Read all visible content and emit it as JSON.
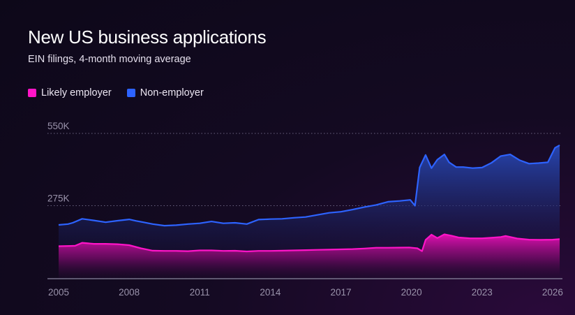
{
  "header": {
    "title": "New US business applications",
    "subtitle": "EIN filings, 4-month moving average"
  },
  "chart_data": {
    "type": "area",
    "title": "New US business applications",
    "subtitle": "EIN filings, 4-month moving average",
    "xlabel": "",
    "ylabel": "",
    "xlim": [
      2005,
      2026.5
    ],
    "ylim": [
      0,
      550000
    ],
    "x_ticks": [
      {
        "value": 2005,
        "label": "2005"
      },
      {
        "value": 2008,
        "label": "2008"
      },
      {
        "value": 2011,
        "label": "2011"
      },
      {
        "value": 2014,
        "label": "2014"
      },
      {
        "value": 2017,
        "label": "2017"
      },
      {
        "value": 2020,
        "label": "2020"
      },
      {
        "value": 2023,
        "label": "2023"
      },
      {
        "value": 2026,
        "label": "2026"
      }
    ],
    "y_ticks": [
      {
        "value": 275000,
        "label": "275K"
      },
      {
        "value": 550000,
        "label": "550K"
      }
    ],
    "grid": "horizontal dotted",
    "legend_position": "top-left",
    "series": [
      {
        "name": "Likely employer",
        "color": "#ff14c8",
        "x": [
          2005.0,
          2005.5,
          2005.7,
          2006.0,
          2006.5,
          2007.0,
          2007.5,
          2008.0,
          2008.5,
          2009.0,
          2009.5,
          2010.0,
          2010.5,
          2011.0,
          2011.5,
          2012.0,
          2012.5,
          2013.0,
          2013.5,
          2014.0,
          2014.5,
          2015.0,
          2015.5,
          2016.0,
          2016.5,
          2017.0,
          2017.5,
          2018.0,
          2018.5,
          2019.0,
          2019.5,
          2019.9,
          2020.25,
          2020.45,
          2020.6,
          2020.85,
          2021.1,
          2021.4,
          2021.7,
          2022.0,
          2022.5,
          2023.0,
          2023.4,
          2023.8,
          2024.0,
          2024.5,
          2025.0,
          2025.5,
          2026.0,
          2026.3
        ],
        "values": [
          121000,
          122000,
          122500,
          134000,
          130000,
          130000,
          128500,
          125000,
          113000,
          104000,
          103000,
          103000,
          102000,
          105000,
          105000,
          103000,
          103500,
          101000,
          103000,
          103000,
          104000,
          105000,
          106000,
          107000,
          108000,
          109000,
          110000,
          112000,
          115000,
          115000,
          115500,
          116000,
          113000,
          102000,
          145000,
          165000,
          152000,
          166000,
          161000,
          154000,
          151000,
          151000,
          153000,
          156000,
          160000,
          150000,
          146000,
          145000,
          146000,
          148000
        ]
      },
      {
        "name": "Non-employer",
        "color": "#2d63ff",
        "x": [
          2005.0,
          2005.4,
          2005.6,
          2006.0,
          2006.5,
          2007.0,
          2007.5,
          2008.0,
          2008.3,
          2008.6,
          2009.0,
          2009.5,
          2010.0,
          2010.5,
          2011.0,
          2011.5,
          2012.0,
          2012.5,
          2013.0,
          2013.5,
          2014.0,
          2014.5,
          2015.0,
          2015.5,
          2016.0,
          2016.5,
          2017.0,
          2017.5,
          2018.0,
          2018.5,
          2019.0,
          2019.5,
          2019.95,
          2020.15,
          2020.35,
          2020.6,
          2020.85,
          2021.1,
          2021.4,
          2021.6,
          2021.9,
          2022.2,
          2022.6,
          2023.0,
          2023.4,
          2023.8,
          2024.2,
          2024.6,
          2025.0,
          2025.4,
          2025.8,
          2026.1,
          2026.3
        ],
        "values": [
          202000,
          205000,
          210000,
          225000,
          219000,
          212000,
          218000,
          223000,
          217000,
          212000,
          205000,
          199000,
          201000,
          205000,
          208000,
          215000,
          208000,
          210000,
          205000,
          222000,
          224000,
          225000,
          229000,
          232000,
          240000,
          248000,
          252000,
          260000,
          270000,
          278000,
          290000,
          293000,
          297000,
          275000,
          420000,
          468000,
          418000,
          450000,
          470000,
          440000,
          422000,
          422000,
          418000,
          420000,
          438000,
          464000,
          470000,
          448000,
          435000,
          437000,
          440000,
          495000,
          505000
        ]
      }
    ]
  }
}
